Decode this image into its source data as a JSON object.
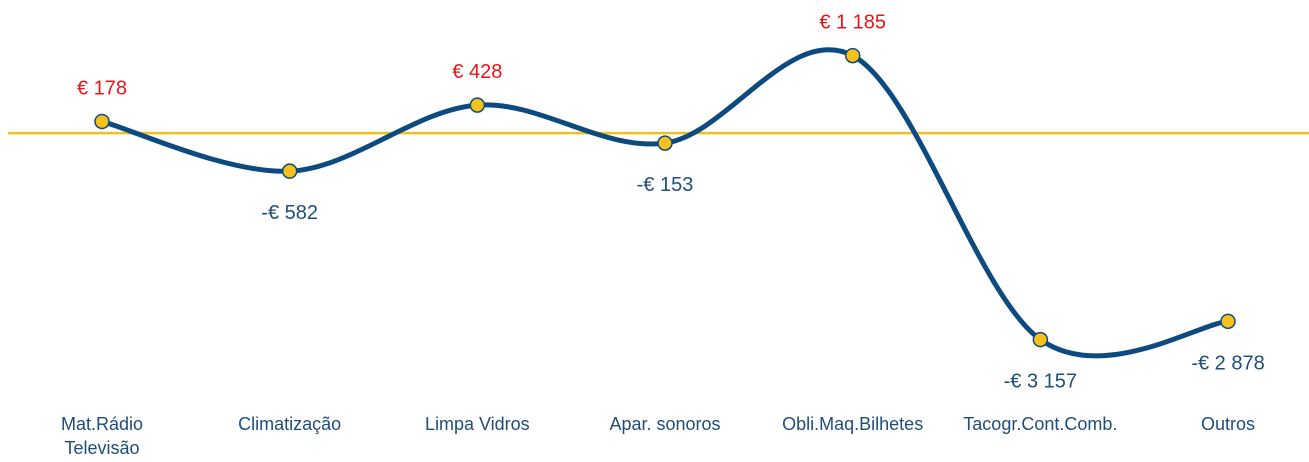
{
  "chart_data": {
    "type": "line",
    "categories": [
      "Mat.Rádio Televisão",
      "Climatização",
      "Limpa Vidros",
      "Apar. sonoros",
      "Obli.Maq.Bilhetes",
      "Tacogr.Cont.Comb.",
      "Outros"
    ],
    "series": [
      {
        "color": "#0d4a80",
        "values": [
          178,
          -582,
          428,
          -153,
          1185,
          -3157,
          -2878
        ],
        "value_labels": [
          "€ 178",
          "-€ 582",
          "€ 428",
          "-€ 153",
          "€ 1 185",
          "-€ 3 157",
          "-€ 2 878"
        ]
      }
    ],
    "marker_color": "#f5c11a",
    "zero_line_color": "#f0c020",
    "positive_label_color": "#e8141c",
    "negative_label_color": "#1f4e79",
    "smooth": true,
    "ylim": [
      -3500,
      1500
    ]
  }
}
